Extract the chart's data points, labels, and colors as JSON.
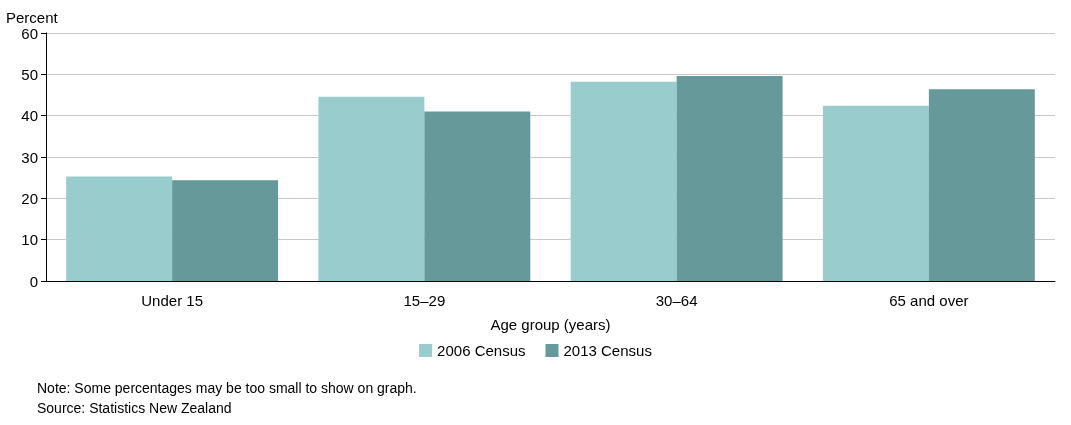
{
  "chart_data": {
    "type": "bar",
    "ylabel": "Percent",
    "xlabel": "Age group (years)",
    "categories": [
      "Under 15",
      "15–29",
      "30–64",
      "65 and over"
    ],
    "series": [
      {
        "name": "2006 Census",
        "color": "#99cccc",
        "values": [
          25.3,
          44.6,
          48.2,
          42.4
        ]
      },
      {
        "name": "2013 Census",
        "color": "#669999",
        "values": [
          24.4,
          41.0,
          49.6,
          46.4
        ]
      }
    ],
    "ylim": [
      0,
      60
    ],
    "yticks": [
      0,
      10,
      20,
      30,
      40,
      50,
      60
    ],
    "grid": "y",
    "legend": "bottom",
    "annotations": [
      "Note: Some percentages may be too small to show on graph.",
      "Source: Statistics New Zealand"
    ]
  }
}
